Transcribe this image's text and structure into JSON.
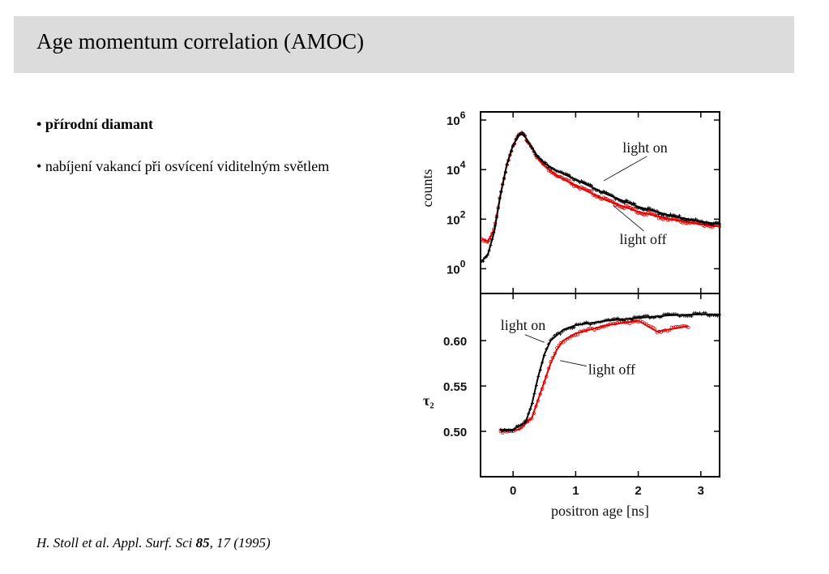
{
  "slide": {
    "title": "Age momentum correlation (AMOC)",
    "bullets": [
      {
        "marker": "•",
        "text": "přírodní diamant"
      },
      {
        "marker": "•",
        "text": "nabíjení vakancí při osvícení viditelným světlem"
      }
    ],
    "citation": {
      "authors": "H. Stoll et al. Appl. Surf. Sci ",
      "volume": "85",
      "rest": ", 17 (1995)"
    }
  },
  "chart_data": [
    {
      "type": "scatter",
      "panel": "top",
      "ylabel": "counts",
      "yscale": "log",
      "ylim_log10": [
        -1,
        6.33
      ],
      "xlim": [
        -0.52,
        3.3
      ],
      "yticks": [
        {
          "log10": 6,
          "base": "10",
          "exp": "6"
        },
        {
          "log10": 4,
          "base": "10",
          "exp": "4"
        },
        {
          "log10": 2,
          "base": "10",
          "exp": "2"
        },
        {
          "log10": 0,
          "base": "10",
          "exp": "0"
        }
      ],
      "annotations": [
        {
          "text": "light on",
          "x": 1.75,
          "log10": 4.7,
          "to_x": 1.45,
          "to_log10": 3.55
        },
        {
          "text": "light off",
          "x": 1.7,
          "log10": 1.0,
          "to_x": 1.6,
          "to_log10": 2.55
        }
      ],
      "series": [
        {
          "name": "light on",
          "color": "#000000",
          "marker": "+",
          "x": [
            -0.5,
            -0.4,
            -0.3,
            -0.2,
            -0.1,
            0,
            0.1,
            0.15,
            0.2,
            0.3,
            0.4,
            0.5,
            0.7,
            1.0,
            1.5,
            2.0,
            2.5,
            3.0,
            3.3
          ],
          "log10": [
            0.3,
            0.6,
            1.5,
            3.0,
            4.2,
            5.0,
            5.4,
            5.42,
            5.3,
            4.9,
            4.5,
            4.25,
            3.95,
            3.6,
            3.0,
            2.5,
            2.15,
            1.9,
            1.8
          ]
        },
        {
          "name": "light off",
          "color": "#e00000",
          "marker": "o",
          "x": [
            -0.5,
            -0.4,
            -0.3,
            -0.2,
            -0.1,
            0,
            0.1,
            0.15,
            0.2,
            0.3,
            0.4,
            0.5,
            0.7,
            1.0,
            1.5,
            2.0,
            2.5,
            3.0,
            3.3
          ],
          "log10": [
            1.2,
            1.1,
            1.6,
            3.0,
            4.2,
            5.0,
            5.4,
            5.42,
            5.3,
            4.9,
            4.45,
            4.15,
            3.75,
            3.35,
            2.75,
            2.3,
            2.0,
            1.8,
            1.7
          ]
        }
      ]
    },
    {
      "type": "scatter",
      "panel": "bottom",
      "ylabel": "τ₂",
      "xlabel": "positron age [ns]",
      "ylim": [
        0.45,
        0.652
      ],
      "xlim": [
        -0.52,
        3.3
      ],
      "yticks": [
        "0.60",
        "0.55",
        "0.50"
      ],
      "xticks": [
        "0",
        "1",
        "2",
        "3"
      ],
      "annotations": [
        {
          "text": "light on",
          "x": -0.2,
          "y": 0.612,
          "to_x": 0.5,
          "to_y": 0.598
        },
        {
          "text": "light off",
          "x": 1.2,
          "y": 0.563,
          "to_x": 0.75,
          "to_y": 0.578
        }
      ],
      "series": [
        {
          "name": "light on",
          "color": "#000000",
          "marker": "+",
          "x": [
            -0.2,
            0,
            0.2,
            0.3,
            0.4,
            0.5,
            0.6,
            0.8,
            1.0,
            1.5,
            2.0,
            2.5,
            3.0,
            3.3
          ],
          "y": [
            0.502,
            0.502,
            0.51,
            0.53,
            0.56,
            0.585,
            0.6,
            0.612,
            0.617,
            0.622,
            0.625,
            0.628,
            0.629,
            0.629
          ]
        },
        {
          "name": "light off",
          "color": "#e00000",
          "marker": "o",
          "x": [
            -0.2,
            0.1,
            0.3,
            0.4,
            0.5,
            0.6,
            0.7,
            0.8,
            1.0,
            1.5,
            2.0,
            2.3,
            2.8
          ],
          "y": [
            0.5,
            0.502,
            0.515,
            0.535,
            0.555,
            0.575,
            0.59,
            0.6,
            0.608,
            0.617,
            0.622,
            0.61,
            0.616
          ]
        }
      ]
    }
  ]
}
